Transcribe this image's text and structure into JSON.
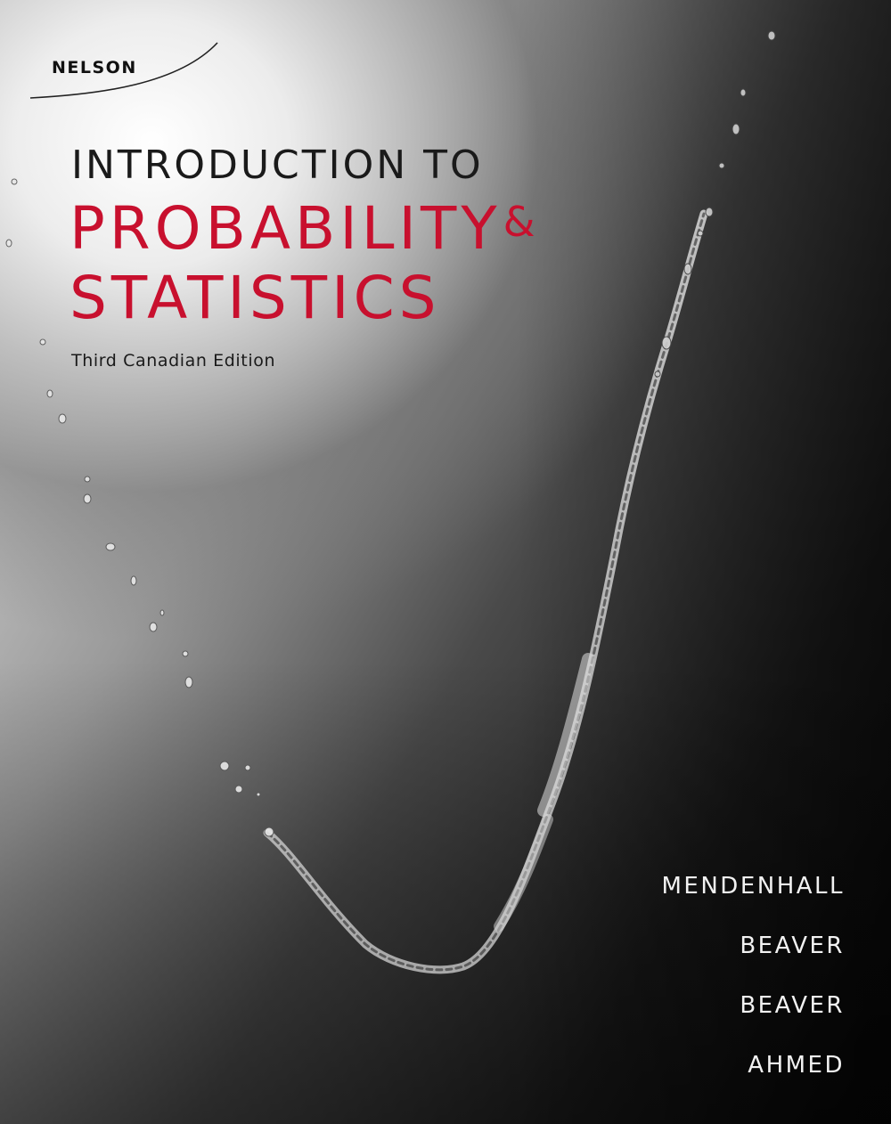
{
  "publisher": "NELSON",
  "title": {
    "line1": "INTRODUCTION TO",
    "line2": "PROBABILITY",
    "amp": "&",
    "line3": "STATISTICS"
  },
  "edition": "Third Canadian Edition",
  "authors": [
    "MENDENHALL",
    "BEAVER",
    "BEAVER",
    "AHMED"
  ],
  "colors": {
    "title_red": "#c8102e",
    "dark_text": "#1a1a1a",
    "author_text": "#f2f2f2"
  }
}
